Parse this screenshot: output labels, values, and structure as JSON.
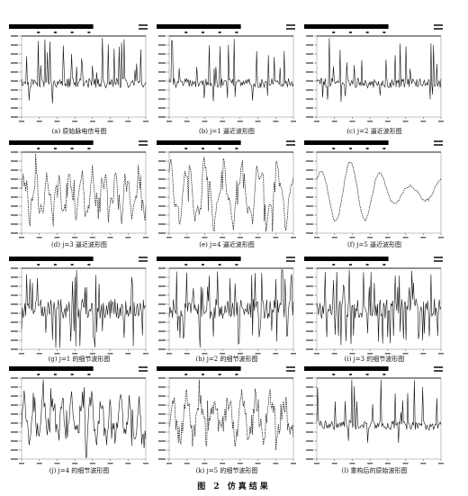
{
  "figure": {
    "caption": "图 2   仿真结果"
  },
  "chart_data": [
    {
      "type": "line",
      "caption": "(a) 原始脉电信号图",
      "style": "spiky",
      "seed": 11,
      "series": [
        {
          "values": []
        }
      ]
    },
    {
      "type": "line",
      "caption": "(b) j=1 逼近波形图",
      "style": "spiky",
      "seed": 23,
      "series": [
        {
          "values": []
        }
      ]
    },
    {
      "type": "line",
      "caption": "(c) j=2 逼近波形图",
      "style": "spiky",
      "seed": 37,
      "series": [
        {
          "values": []
        }
      ]
    },
    {
      "type": "line",
      "caption": "(d) j=3 逼近波形图",
      "style": "approx3",
      "seed": 41,
      "series": [
        {
          "values": []
        }
      ]
    },
    {
      "type": "line",
      "caption": "(e) j=4 逼近波形图",
      "style": "approx4",
      "seed": 53,
      "series": [
        {
          "values": []
        }
      ]
    },
    {
      "type": "line",
      "caption": "(f) j=5 逼近波形图",
      "style": "smooth",
      "seed": 61,
      "series": [
        {
          "values": []
        }
      ]
    },
    {
      "type": "line",
      "caption": "(g) j=1 的细节波形图",
      "style": "detail",
      "seed": 71,
      "series": [
        {
          "values": []
        }
      ]
    },
    {
      "type": "line",
      "caption": "(h) j=2 的细节波形图",
      "style": "detail",
      "seed": 83,
      "series": [
        {
          "values": []
        }
      ]
    },
    {
      "type": "line",
      "caption": "(i) j=3 的细节波形图",
      "style": "detail",
      "seed": 97,
      "series": [
        {
          "values": []
        }
      ]
    },
    {
      "type": "line",
      "caption": "(j) j=4 的细节波形图",
      "style": "detail4",
      "seed": 101,
      "series": [
        {
          "values": []
        }
      ]
    },
    {
      "type": "line",
      "caption": "(k) j=5 的细节波形图",
      "style": "detail5",
      "seed": 113,
      "series": [
        {
          "values": []
        }
      ]
    },
    {
      "type": "line",
      "caption": "(l) 重构后的原始波形图",
      "style": "spiky",
      "seed": 127,
      "series": [
        {
          "values": []
        }
      ]
    }
  ]
}
